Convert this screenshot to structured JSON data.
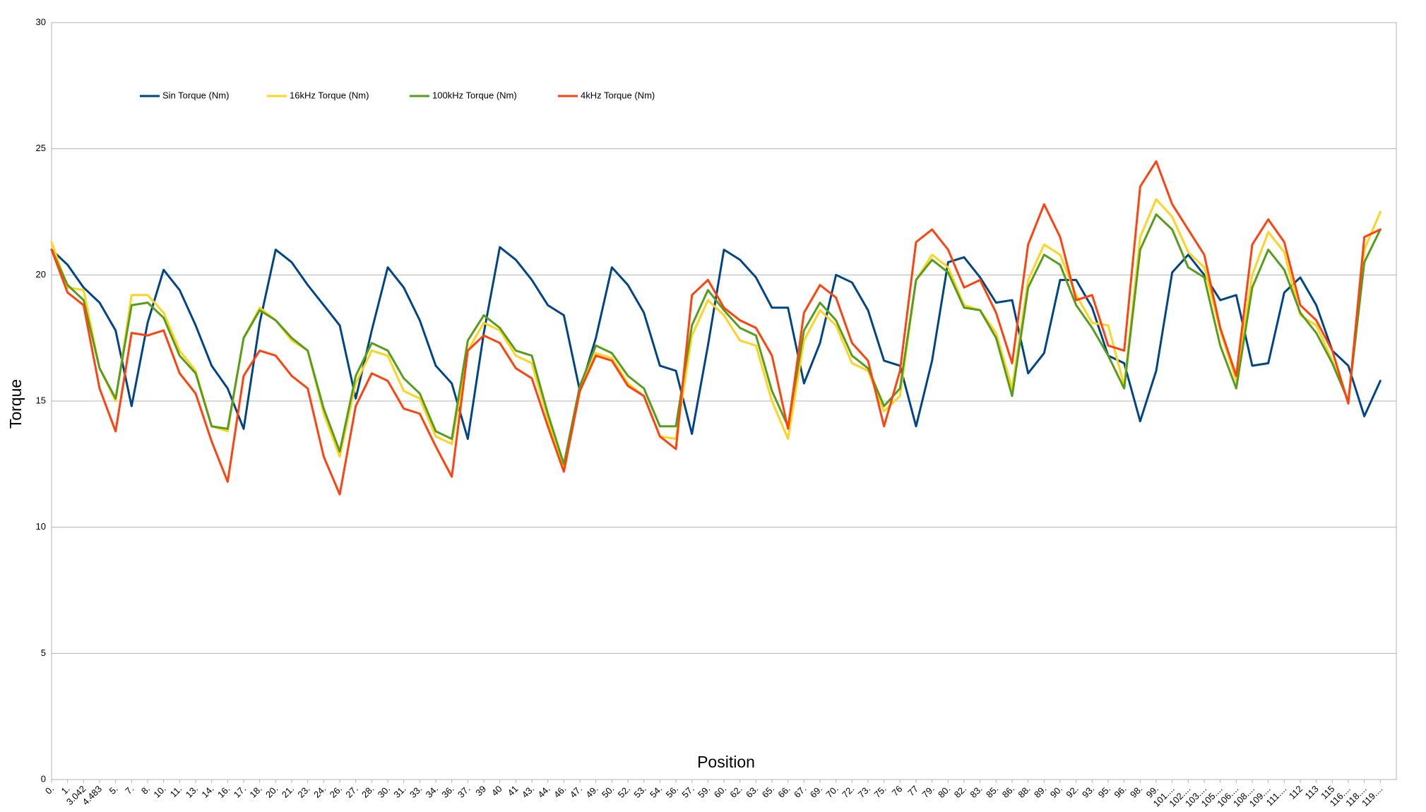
{
  "chart_data": {
    "type": "line",
    "x_label": "Position",
    "y_label": "Torque",
    "categories": [
      "0.",
      "1.",
      "3.042",
      "4.483",
      "5.",
      "7.",
      "8.",
      "10.",
      "11.",
      "13.",
      "14.",
      "16.",
      "17.",
      "18.",
      "20.",
      "21.",
      "23.",
      "24.",
      "26.",
      "27.",
      "28.",
      "30.",
      "31.",
      "33.",
      "34.",
      "36.",
      "37.",
      "39",
      "40",
      "41",
      "43.",
      "44.",
      "46.",
      "47.",
      "49.",
      "50.",
      "52.",
      "53.",
      "54.",
      "56.",
      "57.",
      "59.",
      "60.",
      "62.",
      "63.",
      "65.",
      "66.",
      "67.",
      "69.",
      "70.",
      "72.",
      "73.",
      "75.",
      "76",
      "77",
      "79.",
      "80.",
      "82.",
      "83.",
      "85.",
      "86.",
      "88.",
      "89.",
      "90.",
      "92.",
      "93.",
      "95.",
      "96.",
      "98.",
      "99.",
      "101....",
      "102....",
      "103....",
      "105....",
      "106....",
      "108....",
      "109....",
      "111....",
      "112",
      "113",
      "115",
      "116....",
      "118....",
      "119...."
    ],
    "series": [
      {
        "name": "Sin Torque (Nm)",
        "color": "#004586",
        "values": [
          21.0,
          20.4,
          19.5,
          18.9,
          17.8,
          14.8,
          18.1,
          20.2,
          19.4,
          18.0,
          16.4,
          15.5,
          13.9,
          18.1,
          21.0,
          20.5,
          19.6,
          18.8,
          18.0,
          15.1,
          17.8,
          20.3,
          19.5,
          18.2,
          16.4,
          15.7,
          13.5,
          17.7,
          21.1,
          20.6,
          19.8,
          18.8,
          18.4,
          15.4,
          17.5,
          20.3,
          19.6,
          18.5,
          16.4,
          16.2,
          13.7,
          17.2,
          21.0,
          20.6,
          19.9,
          18.7,
          18.7,
          15.7,
          17.3,
          20.0,
          19.7,
          18.6,
          16.6,
          16.4,
          14.0,
          16.6,
          20.5,
          20.7,
          19.9,
          18.9,
          19.0,
          16.1,
          16.9,
          19.8,
          19.8,
          18.7,
          16.8,
          16.5,
          14.2,
          16.2,
          20.1,
          20.8,
          20.0,
          19.0,
          19.2,
          16.4,
          16.5,
          19.3,
          19.9,
          18.8,
          17.0,
          16.4,
          14.4,
          15.8
        ]
      },
      {
        "name": "16kHz Torque (Nm)",
        "color": "#ffd320",
        "values": [
          21.3,
          19.5,
          19.4,
          16.3,
          15.0,
          19.2,
          19.2,
          18.5,
          17.0,
          16.2,
          14.0,
          13.8,
          17.5,
          18.7,
          18.2,
          17.4,
          17.0,
          14.5,
          12.8,
          15.7,
          17.0,
          16.8,
          15.4,
          15.1,
          13.6,
          13.3,
          17.0,
          18.1,
          17.8,
          16.8,
          16.5,
          14.3,
          12.3,
          15.5,
          16.9,
          16.7,
          15.7,
          15.2,
          13.6,
          13.5,
          17.6,
          19.0,
          18.4,
          17.4,
          17.2,
          15.0,
          13.5,
          17.4,
          18.6,
          18.0,
          16.5,
          16.2,
          14.6,
          15.2,
          19.8,
          20.8,
          20.3,
          18.8,
          18.6,
          17.7,
          15.5,
          19.8,
          21.2,
          20.8,
          19.2,
          18.1,
          18.0,
          15.6,
          21.5,
          23.0,
          22.3,
          20.9,
          20.3,
          17.8,
          15.8,
          20.0,
          21.7,
          20.9,
          18.4,
          18.0,
          16.6,
          15.0,
          21.0,
          22.5
        ]
      },
      {
        "name": "100kHz Torque (Nm)",
        "color": "#579d1c",
        "values": [
          21.0,
          19.6,
          19.0,
          16.3,
          15.1,
          18.8,
          18.9,
          18.3,
          16.8,
          16.1,
          14.0,
          13.9,
          17.5,
          18.6,
          18.2,
          17.5,
          17.0,
          14.7,
          13.0,
          16.0,
          17.3,
          17.0,
          15.9,
          15.3,
          13.8,
          13.5,
          17.4,
          18.4,
          17.9,
          17.0,
          16.8,
          14.5,
          12.5,
          15.6,
          17.2,
          16.9,
          16.0,
          15.5,
          14.0,
          14.0,
          18.0,
          19.4,
          18.6,
          17.9,
          17.6,
          15.4,
          14.0,
          17.8,
          18.9,
          18.2,
          16.8,
          16.3,
          14.8,
          15.5,
          19.8,
          20.6,
          20.1,
          18.7,
          18.6,
          17.5,
          15.2,
          19.5,
          20.8,
          20.4,
          18.8,
          17.9,
          16.8,
          15.5,
          21.0,
          22.4,
          21.8,
          20.3,
          19.9,
          17.2,
          15.5,
          19.5,
          21.0,
          20.2,
          18.5,
          17.7,
          16.5,
          15.0,
          20.5,
          21.8
        ]
      },
      {
        "name": "4kHz Torque (Nm)",
        "color": "#ff420e",
        "values": [
          21.0,
          19.3,
          18.8,
          15.5,
          13.8,
          17.7,
          17.6,
          17.8,
          16.1,
          15.3,
          13.4,
          11.8,
          16.0,
          17.0,
          16.8,
          16.0,
          15.5,
          12.8,
          11.3,
          14.8,
          16.1,
          15.8,
          14.7,
          14.5,
          13.2,
          12.0,
          17.0,
          17.6,
          17.3,
          16.3,
          15.9,
          14.0,
          12.2,
          15.4,
          16.8,
          16.6,
          15.6,
          15.2,
          13.6,
          13.1,
          19.2,
          19.8,
          18.7,
          18.2,
          17.9,
          16.8,
          13.9,
          18.5,
          19.6,
          19.1,
          17.3,
          16.6,
          14.0,
          16.2,
          21.3,
          21.8,
          21.0,
          19.5,
          19.8,
          18.5,
          16.5,
          21.2,
          22.8,
          21.5,
          19.0,
          19.2,
          17.2,
          17.0,
          23.5,
          24.5,
          22.8,
          21.8,
          20.8,
          17.9,
          16.0,
          21.2,
          22.2,
          21.3,
          18.8,
          18.2,
          17.0,
          14.9,
          21.5,
          21.8
        ]
      }
    ],
    "ylim": [
      0,
      30
    ],
    "yticks": [
      0,
      5,
      10,
      15,
      20,
      25,
      30
    ],
    "grid": true,
    "legend": "top-left"
  }
}
